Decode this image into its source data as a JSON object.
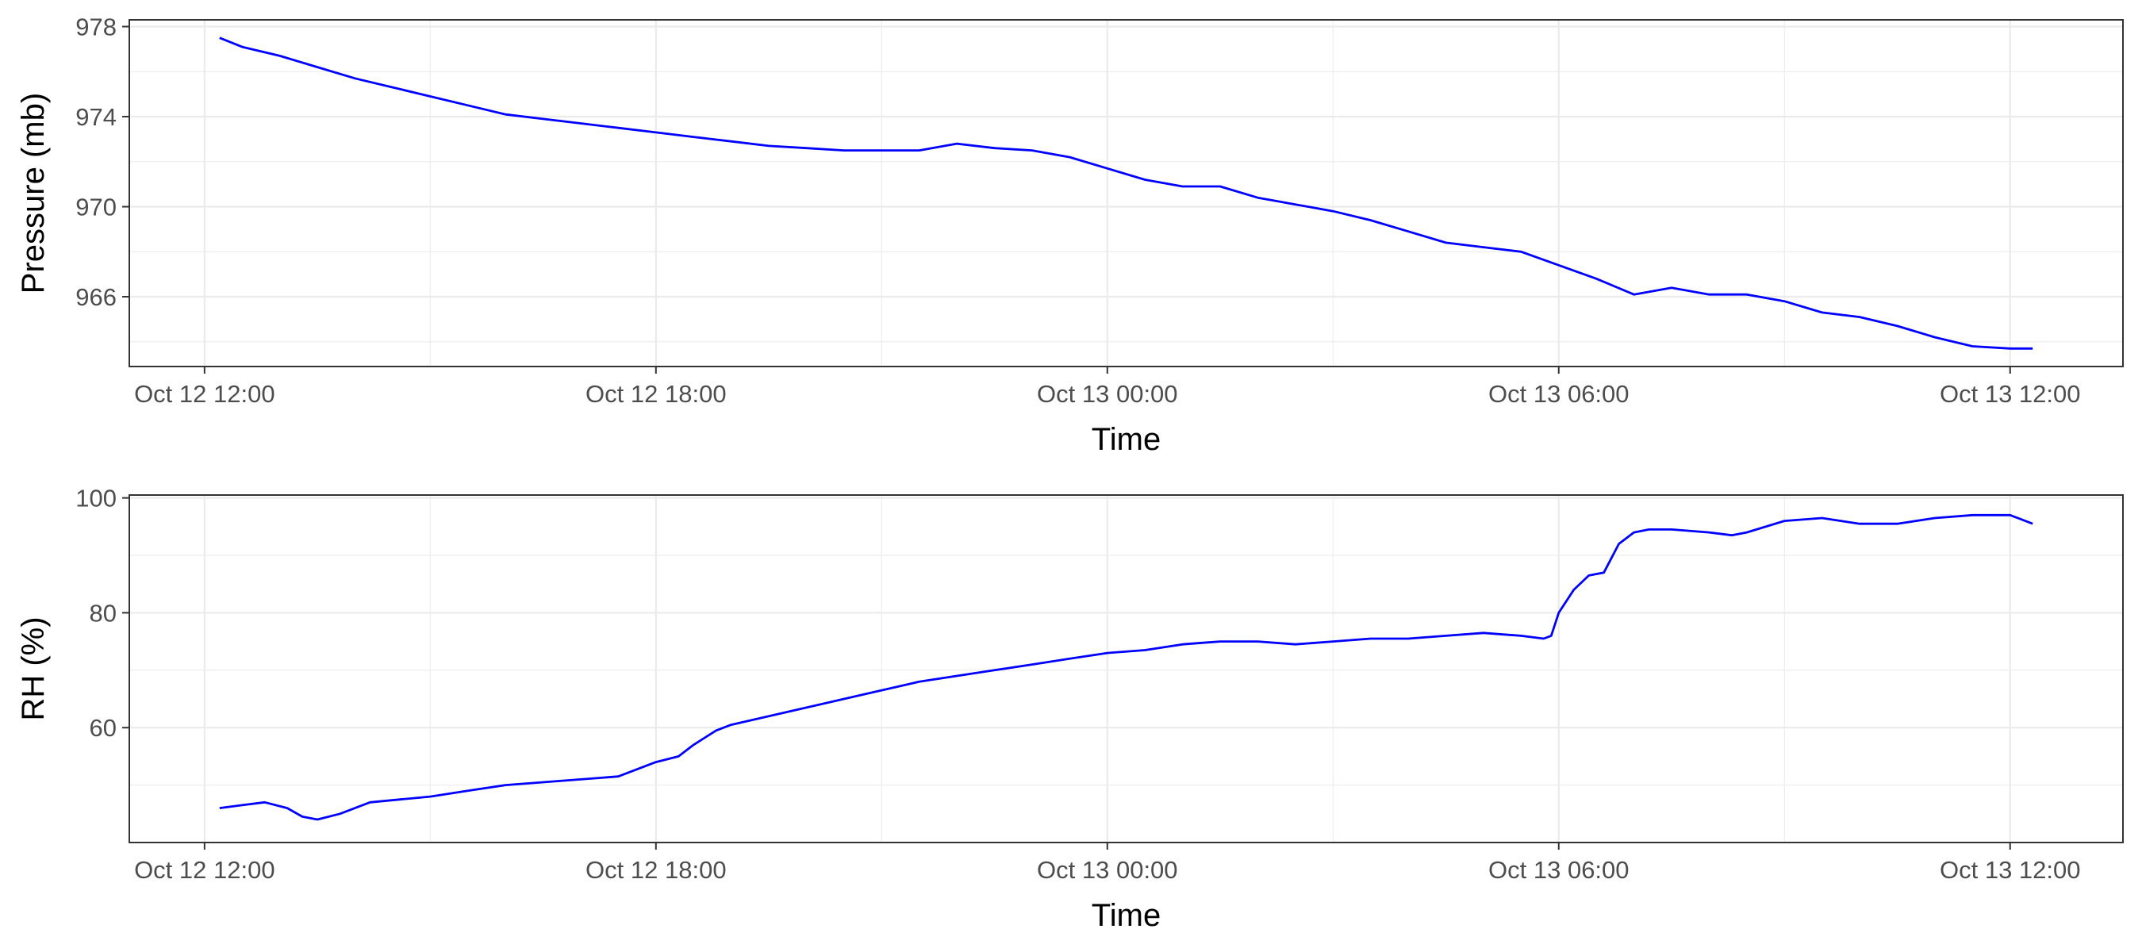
{
  "chart_data": [
    {
      "type": "line",
      "xlabel": "Time",
      "ylabel": "Pressure (mb)",
      "x_ticks": [
        {
          "t": 12,
          "label": "Oct 12 12:00"
        },
        {
          "t": 18,
          "label": "Oct 12 18:00"
        },
        {
          "t": 24,
          "label": "Oct 13 00:00"
        },
        {
          "t": 30,
          "label": "Oct 13 06:00"
        },
        {
          "t": 36,
          "label": "Oct 13 12:00"
        }
      ],
      "y_ticks": [
        {
          "v": 966,
          "label": "966"
        },
        {
          "v": 970,
          "label": "970"
        },
        {
          "v": 974,
          "label": "974"
        },
        {
          "v": 978,
          "label": "978"
        }
      ],
      "xlim": [
        11.0,
        37.5
      ],
      "ylim": [
        962.9,
        978.3
      ],
      "grid": true,
      "series_color": "#0000ff",
      "series": [
        {
          "x": [
            12.2,
            12.5,
            13.0,
            13.5,
            14.0,
            14.5,
            15.0,
            15.5,
            16.0,
            16.5,
            17.0,
            17.5,
            18.0,
            18.5,
            19.0,
            19.5,
            20.0,
            20.5,
            21.0,
            21.5,
            22.0,
            22.5,
            23.0,
            23.5,
            24.0,
            24.5,
            25.0,
            25.5,
            26.0,
            26.5,
            27.0,
            27.5,
            28.0,
            28.5,
            29.0,
            29.5,
            30.0,
            30.5,
            31.0,
            31.5,
            32.0,
            32.5,
            33.0,
            33.5,
            34.0,
            34.5,
            35.0,
            35.5,
            36.0,
            36.3
          ],
          "y": [
            977.5,
            977.1,
            976.7,
            976.2,
            975.7,
            975.3,
            974.9,
            974.5,
            974.1,
            973.9,
            973.7,
            973.5,
            973.3,
            973.1,
            972.9,
            972.7,
            972.6,
            972.5,
            972.5,
            972.5,
            972.8,
            972.6,
            972.5,
            972.2,
            971.7,
            971.2,
            970.9,
            970.9,
            970.4,
            970.1,
            969.8,
            969.4,
            968.9,
            968.4,
            968.2,
            968.0,
            967.4,
            966.8,
            966.1,
            966.4,
            966.1,
            966.1,
            965.8,
            965.3,
            965.1,
            964.7,
            964.2,
            963.8,
            963.7,
            963.7
          ]
        }
      ]
    },
    {
      "type": "line",
      "xlabel": "Time",
      "ylabel": "RH (%)",
      "x_ticks": [
        {
          "t": 12,
          "label": "Oct 12 12:00"
        },
        {
          "t": 18,
          "label": "Oct 12 18:00"
        },
        {
          "t": 24,
          "label": "Oct 13 00:00"
        },
        {
          "t": 30,
          "label": "Oct 13 06:00"
        },
        {
          "t": 36,
          "label": "Oct 13 12:00"
        }
      ],
      "y_ticks": [
        {
          "v": 60,
          "label": "60"
        },
        {
          "v": 80,
          "label": "80"
        },
        {
          "v": 100,
          "label": "100"
        }
      ],
      "xlim": [
        11.0,
        37.5
      ],
      "ylim": [
        40.0,
        100.5
      ],
      "grid": true,
      "series_color": "#0000ff",
      "series": [
        {
          "x": [
            12.2,
            12.5,
            12.8,
            13.1,
            13.3,
            13.5,
            13.8,
            14.2,
            14.6,
            15.0,
            15.5,
            16.0,
            16.5,
            17.0,
            17.5,
            18.0,
            18.3,
            18.5,
            18.8,
            19.0,
            19.5,
            20.0,
            20.5,
            21.0,
            21.5,
            22.0,
            22.5,
            23.0,
            23.5,
            24.0,
            24.5,
            25.0,
            25.5,
            26.0,
            26.5,
            27.0,
            27.5,
            28.0,
            28.5,
            29.0,
            29.5,
            29.8,
            29.9,
            30.0,
            30.2,
            30.4,
            30.6,
            30.8,
            31.0,
            31.2,
            31.5,
            32.0,
            32.3,
            32.5,
            33.0,
            33.5,
            34.0,
            34.5,
            35.0,
            35.5,
            36.0,
            36.3
          ],
          "y": [
            46.0,
            46.5,
            47.0,
            46.0,
            44.5,
            44.0,
            45.0,
            47.0,
            47.5,
            48.0,
            49.0,
            50.0,
            50.5,
            51.0,
            51.5,
            54.0,
            55.0,
            57.0,
            59.5,
            60.5,
            62.0,
            63.5,
            65.0,
            66.5,
            68.0,
            69.0,
            70.0,
            71.0,
            72.0,
            73.0,
            73.5,
            74.5,
            75.0,
            75.0,
            74.5,
            75.0,
            75.5,
            75.5,
            76.0,
            76.5,
            76.0,
            75.5,
            76.0,
            80.0,
            84.0,
            86.5,
            87.0,
            92.0,
            94.0,
            94.5,
            94.5,
            94.0,
            93.5,
            94.0,
            96.0,
            96.5,
            95.5,
            95.5,
            96.5,
            97.0,
            97.0,
            95.5
          ]
        }
      ]
    }
  ]
}
